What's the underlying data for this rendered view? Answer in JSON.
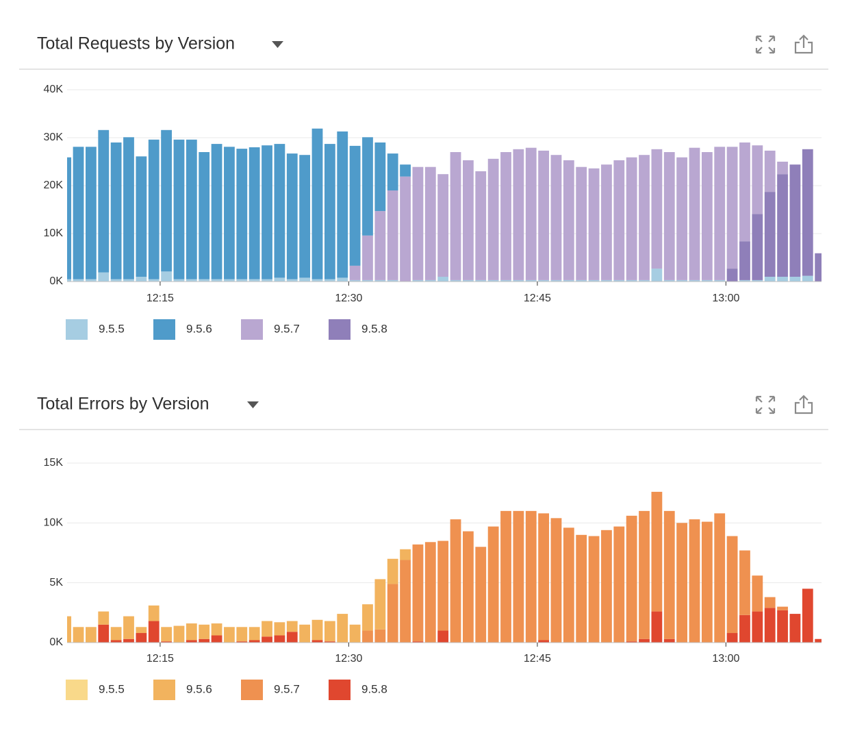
{
  "chart_data": [
    {
      "type": "bar",
      "stacked": true,
      "title": "Total Requests by Version",
      "x": [
        727.5,
        728.5,
        729.5,
        730.5,
        731.5,
        732.5,
        733.5,
        734.5,
        735.5,
        736.5,
        737.5,
        738.5,
        739.5,
        740.5,
        741.5,
        742.5,
        743.5,
        744.5,
        745.5,
        746.5,
        747.5,
        748.5,
        749.5,
        750.5,
        751.5,
        752.5,
        753.5,
        754.5,
        755.5,
        756.5,
        757.5,
        758.5,
        759.5,
        760.5,
        761.5,
        762.5,
        763.5,
        764.5,
        765.5,
        766.5,
        767.5,
        768.5,
        769.5,
        770.5,
        771.5,
        772.5,
        773.5,
        774.5,
        775.5,
        776.5,
        777.5,
        778.5,
        779.5,
        780.5,
        781.5,
        782.5,
        783.5,
        784.5,
        785.5,
        786.5,
        787.5
      ],
      "xlim": [
        727.6,
        787.6
      ],
      "xticks": [
        {
          "value": 735,
          "label": "12:15"
        },
        {
          "value": 750,
          "label": "12:30"
        },
        {
          "value": 765,
          "label": "12:45"
        },
        {
          "value": 780,
          "label": "13:00"
        }
      ],
      "ylim": [
        0,
        40000
      ],
      "yticks": [
        {
          "value": 0,
          "label": "0K"
        },
        {
          "value": 10000,
          "label": "10K"
        },
        {
          "value": 20000,
          "label": "20K"
        },
        {
          "value": 30000,
          "label": "30K"
        },
        {
          "value": 40000,
          "label": "40K"
        }
      ],
      "grid": true,
      "series": [
        {
          "name": "9.5.5",
          "color": "#a6cde2",
          "values": [
            500,
            500,
            500,
            1900,
            500,
            500,
            1000,
            500,
            2100,
            500,
            500,
            500,
            500,
            500,
            500,
            500,
            500,
            800,
            500,
            800,
            500,
            500,
            800,
            300,
            300,
            300,
            300,
            0,
            300,
            300,
            1000,
            300,
            300,
            300,
            300,
            300,
            300,
            300,
            300,
            300,
            300,
            300,
            300,
            300,
            300,
            300,
            300,
            2700,
            300,
            300,
            300,
            300,
            300,
            0,
            300,
            300,
            1000,
            1000,
            1000,
            1200,
            0
          ]
        },
        {
          "name": "9.5.6",
          "color": "#4f9bca",
          "values": [
            25400,
            27600,
            27600,
            29700,
            28500,
            29600,
            25100,
            29100,
            29500,
            29100,
            29100,
            26500,
            28200,
            27600,
            27200,
            27500,
            27900,
            27900,
            26200,
            25600,
            31400,
            28200,
            30500,
            25000,
            20500,
            14300,
            7700,
            2500,
            0,
            0,
            0,
            0,
            0,
            0,
            0,
            0,
            0,
            0,
            0,
            0,
            0,
            0,
            0,
            0,
            0,
            0,
            0,
            0,
            0,
            0,
            0,
            0,
            0,
            0,
            0,
            0,
            0,
            0,
            0,
            0,
            0
          ]
        },
        {
          "name": "9.5.7",
          "color": "#b9a7d1",
          "values": [
            0,
            0,
            0,
            0,
            0,
            0,
            0,
            0,
            0,
            0,
            0,
            0,
            0,
            0,
            0,
            0,
            0,
            0,
            0,
            0,
            0,
            0,
            0,
            3000,
            9300,
            14400,
            18700,
            21900,
            23600,
            23600,
            21400,
            26700,
            25000,
            22700,
            25300,
            26700,
            27300,
            27600,
            27000,
            26100,
            25000,
            23600,
            23300,
            24100,
            25000,
            25600,
            26100,
            24900,
            26700,
            25600,
            27600,
            26700,
            27800,
            25400,
            20600,
            14300,
            8600,
            2600,
            0,
            0,
            0
          ]
        },
        {
          "name": "9.5.8",
          "color": "#8f7fb9",
          "values": [
            0,
            0,
            0,
            0,
            0,
            0,
            0,
            0,
            0,
            0,
            0,
            0,
            0,
            0,
            0,
            0,
            0,
            0,
            0,
            0,
            0,
            0,
            0,
            0,
            0,
            0,
            0,
            0,
            0,
            0,
            0,
            0,
            0,
            0,
            0,
            0,
            0,
            0,
            0,
            0,
            0,
            0,
            0,
            0,
            0,
            0,
            0,
            0,
            0,
            0,
            0,
            0,
            0,
            2700,
            8100,
            13800,
            17700,
            21400,
            23400,
            26400,
            5900
          ]
        }
      ]
    },
    {
      "type": "bar",
      "stacked": true,
      "title": "Total Errors by Version",
      "x": [
        727.5,
        728.5,
        729.5,
        730.5,
        731.5,
        732.5,
        733.5,
        734.5,
        735.5,
        736.5,
        737.5,
        738.5,
        739.5,
        740.5,
        741.5,
        742.5,
        743.5,
        744.5,
        745.5,
        746.5,
        747.5,
        748.5,
        749.5,
        750.5,
        751.5,
        752.5,
        753.5,
        754.5,
        755.5,
        756.5,
        757.5,
        758.5,
        759.5,
        760.5,
        761.5,
        762.5,
        763.5,
        764.5,
        765.5,
        766.5,
        767.5,
        768.5,
        769.5,
        770.5,
        771.5,
        772.5,
        773.5,
        774.5,
        775.5,
        776.5,
        777.5,
        778.5,
        779.5,
        780.5,
        781.5,
        782.5,
        783.5,
        784.5,
        785.5,
        786.5,
        787.5
      ],
      "xlim": [
        727.6,
        787.6
      ],
      "xticks": [
        {
          "value": 735,
          "label": "12:15"
        },
        {
          "value": 750,
          "label": "12:30"
        },
        {
          "value": 765,
          "label": "12:45"
        },
        {
          "value": 780,
          "label": "13:00"
        }
      ],
      "ylim": [
        0,
        15000
      ],
      "yticks": [
        {
          "value": 0,
          "label": "0K"
        },
        {
          "value": 5000,
          "label": "5K"
        },
        {
          "value": 10000,
          "label": "10K"
        },
        {
          "value": 15000,
          "label": "15K"
        }
      ],
      "grid": true,
      "series": [
        {
          "name": "9.5.5",
          "color": "#f9d98a",
          "values": [
            0,
            0,
            0,
            0,
            0,
            0,
            0,
            0,
            0,
            0,
            0,
            0,
            0,
            0,
            0,
            0,
            0,
            0,
            0,
            0,
            0,
            0,
            0,
            0,
            0,
            0,
            0,
            0,
            0,
            0,
            0,
            0,
            0,
            0,
            0,
            0,
            0,
            0,
            0,
            0,
            0,
            0,
            0,
            0,
            0,
            0,
            0,
            0,
            0,
            0,
            0,
            0,
            0,
            0,
            0,
            0,
            0,
            0,
            0,
            0,
            0
          ]
        },
        {
          "name": "9.5.6",
          "color": "#f2b35e",
          "values": [
            2200,
            1300,
            1300,
            1100,
            1100,
            1900,
            500,
            1300,
            1200,
            1400,
            1400,
            1200,
            1000,
            1300,
            1200,
            1100,
            1300,
            1100,
            900,
            1500,
            1700,
            1700,
            2400,
            1500,
            2200,
            4200,
            2100,
            900,
            0,
            0,
            0,
            0,
            0,
            0,
            0,
            0,
            0,
            0,
            0,
            0,
            0,
            0,
            0,
            0,
            0,
            0,
            0,
            0,
            0,
            0,
            0,
            0,
            0,
            0,
            0,
            0,
            0,
            0,
            0,
            0,
            0
          ]
        },
        {
          "name": "9.5.7",
          "color": "#ef9150",
          "values": [
            0,
            0,
            0,
            0,
            0,
            0,
            0,
            0,
            0,
            0,
            0,
            0,
            0,
            0,
            0,
            0,
            0,
            0,
            0,
            0,
            0,
            0,
            0,
            0,
            1000,
            1100,
            4900,
            6900,
            8100,
            8400,
            7500,
            10300,
            9300,
            8000,
            9700,
            11000,
            11000,
            11000,
            10600,
            10400,
            9600,
            9000,
            8900,
            9400,
            9700,
            10500,
            10700,
            10000,
            10700,
            10000,
            10300,
            10100,
            10800,
            8100,
            5400,
            3000,
            900,
            300,
            0,
            0,
            0
          ]
        },
        {
          "name": "9.5.8",
          "color": "#e0472f",
          "values": [
            0,
            0,
            0,
            1500,
            200,
            300,
            800,
            1800,
            100,
            0,
            200,
            300,
            600,
            0,
            100,
            200,
            500,
            600,
            900,
            0,
            200,
            100,
            0,
            0,
            0,
            0,
            0,
            0,
            100,
            0,
            1000,
            0,
            0,
            0,
            0,
            0,
            0,
            0,
            200,
            0,
            0,
            0,
            0,
            0,
            0,
            100,
            300,
            2600,
            300,
            0,
            0,
            0,
            0,
            800,
            2300,
            2600,
            2900,
            2700,
            2400,
            4500,
            300
          ]
        }
      ]
    }
  ]
}
